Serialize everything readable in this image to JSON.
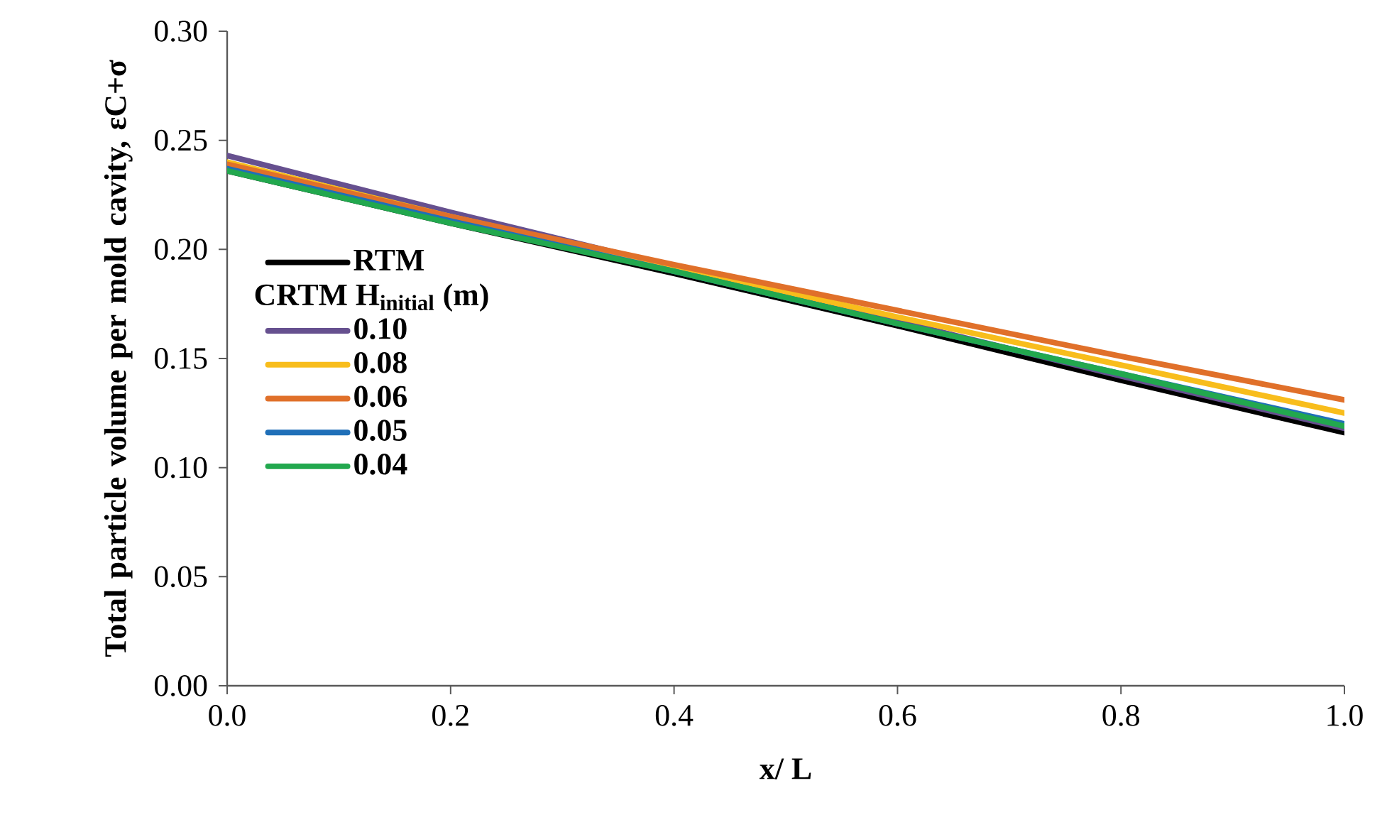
{
  "chart_data": {
    "type": "line",
    "xlabel": "x/ L",
    "ylabel": "Total particle volume per mold cavity, εC+σ",
    "legend_title": "CRTM H$_{initial}$ (m)",
    "legend": "left",
    "grid": false,
    "line_style": "solid",
    "marker": "none",
    "x": [
      0,
      0.2,
      0.4,
      0.6,
      0.8,
      1.0
    ],
    "xlim": [
      0,
      1.0
    ],
    "xticks": [
      {
        "value": 0,
        "label": "0.0"
      },
      0.2,
      0.4,
      0.6,
      0.8,
      {
        "value": 1.0,
        "label": "1.0"
      }
    ],
    "ylim": [
      0,
      0.3
    ],
    "yticks": [
      {
        "value": 0,
        "label": "0.00"
      },
      0.05,
      {
        "value": 0.1,
        "label": "0.10"
      },
      0.15,
      {
        "value": 0.2,
        "label": "0.20"
      },
      0.25,
      {
        "value": 0.3,
        "label": "0.30"
      }
    ],
    "series": [
      {
        "name": "RTM",
        "color": "#000000",
        "values": [
          0.236,
          0.212,
          0.189,
          0.165,
          0.14,
          0.116
        ]
      },
      {
        "name": "0.10",
        "color": "#66508f",
        "values": [
          0.243,
          0.217,
          0.192,
          0.167,
          0.142,
          0.118
        ]
      },
      {
        "name": "0.08",
        "color": "#f8bd1c",
        "values": [
          0.24,
          0.215,
          0.192,
          0.169,
          0.147,
          0.125
        ]
      },
      {
        "name": "0.06",
        "color": "#e0702a",
        "values": [
          0.239,
          0.215,
          0.193,
          0.172,
          0.151,
          0.131
        ]
      },
      {
        "name": "0.05",
        "color": "#1f6fb8",
        "values": [
          0.237,
          0.213,
          0.19,
          0.166,
          0.143,
          0.12
        ]
      },
      {
        "name": "0.04",
        "color": "#22a84e",
        "values": [
          0.236,
          0.212,
          0.19,
          0.166,
          0.143,
          0.119
        ]
      }
    ]
  }
}
